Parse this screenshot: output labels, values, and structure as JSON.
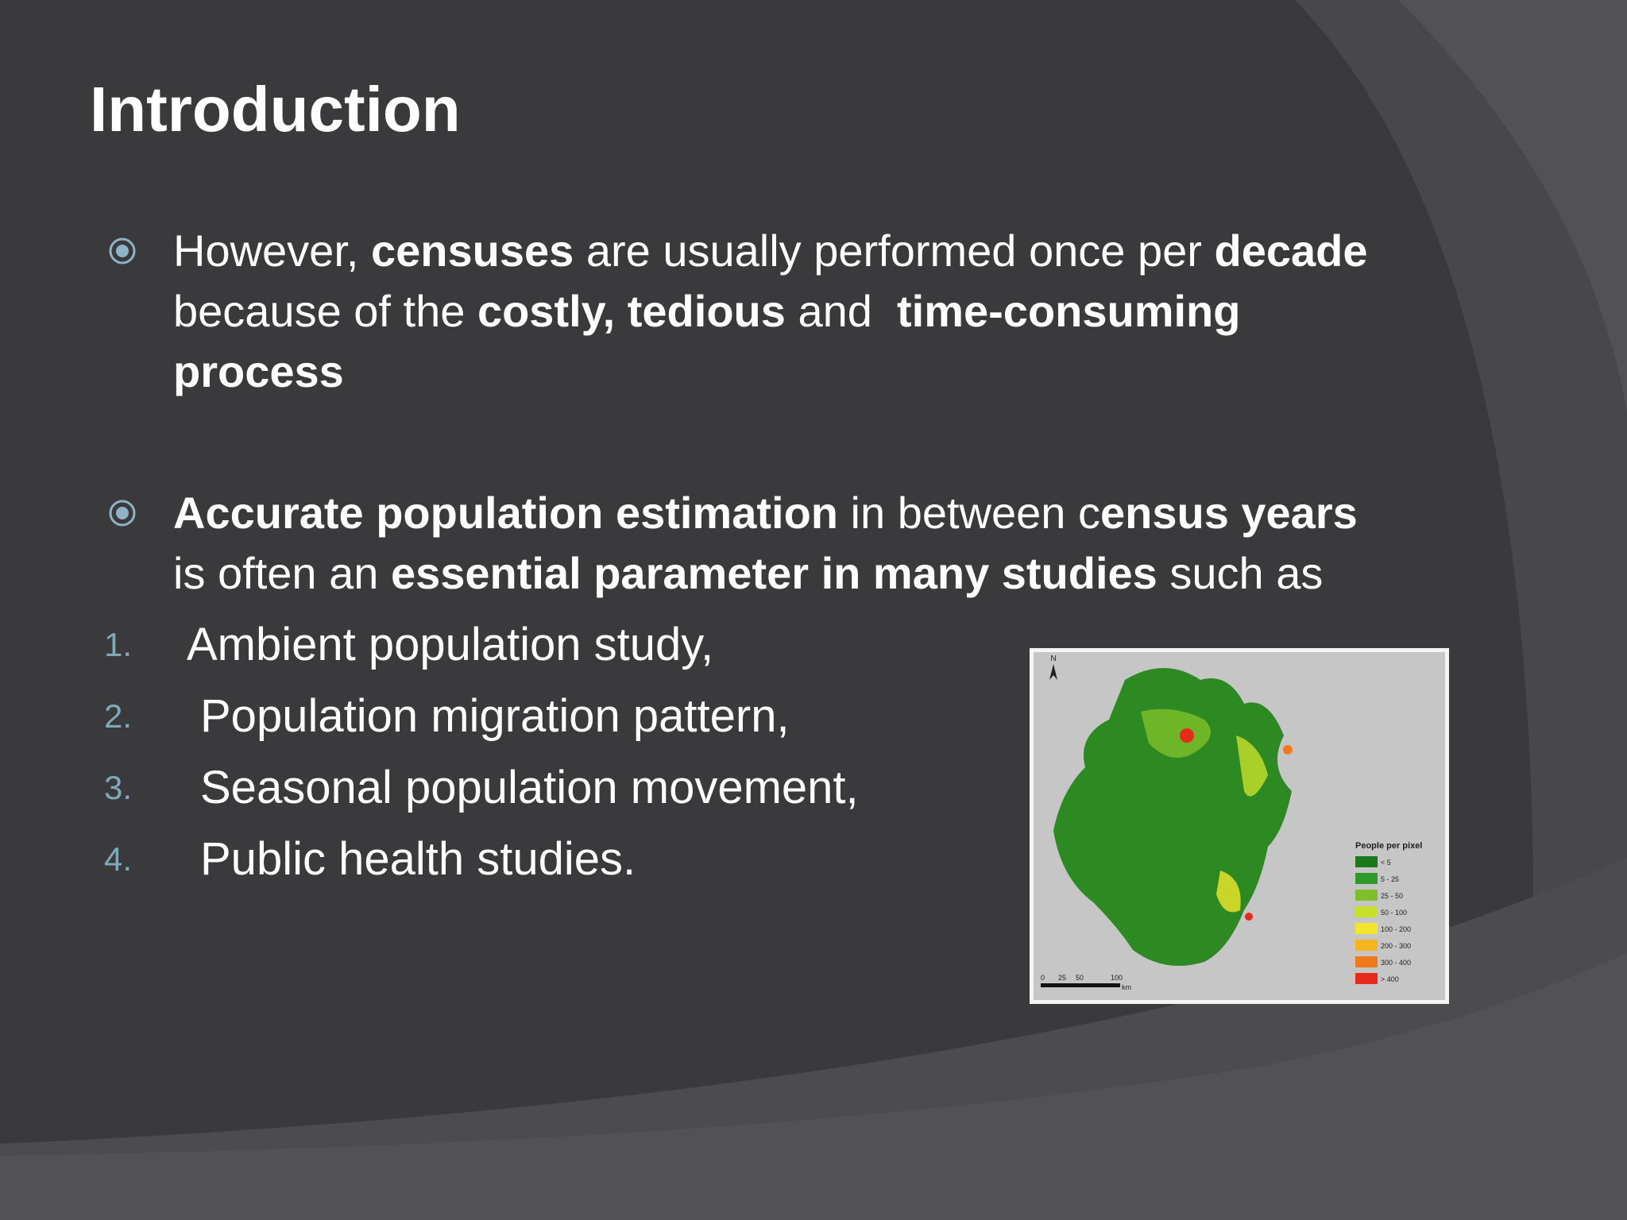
{
  "title": "Introduction",
  "bullets": [
    {
      "lines": [
        [
          {
            "text": "However, ",
            "bold": false
          },
          {
            "text": "censuses",
            "bold": true
          },
          {
            "text": " are usually performed once per ",
            "bold": false
          },
          {
            "text": "decade",
            "bold": true
          }
        ],
        [
          {
            "text": "because of the ",
            "bold": false
          },
          {
            "text": "costly, tedious",
            "bold": true
          },
          {
            "text": " and  ",
            "bold": false
          },
          {
            "text": "time-consuming",
            "bold": true
          }
        ],
        [
          {
            "text": "process",
            "bold": true
          }
        ]
      ]
    },
    {
      "lines": [
        [
          {
            "text": "Accurate population estimation",
            "bold": true
          },
          {
            "text": " in between c",
            "bold": false
          },
          {
            "text": "ensus years",
            "bold": true
          }
        ],
        [
          {
            "text": "is often an ",
            "bold": false
          },
          {
            "text": "essential parameter in many studies",
            "bold": true
          },
          {
            "text": " such as",
            "bold": false
          }
        ]
      ]
    }
  ],
  "list": [
    {
      "number": "1.",
      "text": "Ambient population study,"
    },
    {
      "number": "2.",
      "text": "Population migration pattern,"
    },
    {
      "number": "3.",
      "text": "Seasonal population movement,"
    },
    {
      "number": "4.",
      "text": "Public health studies."
    }
  ],
  "map": {
    "north": "N",
    "legend_title": "People per pixel",
    "legend": [
      {
        "label": "< 5",
        "color": "#1a7a1a"
      },
      {
        "label": "5 - 25",
        "color": "#2f9a2a"
      },
      {
        "label": "25 - 50",
        "color": "#7fbf2a"
      },
      {
        "label": "50 - 100",
        "color": "#c9e02a"
      },
      {
        "label": "100 - 200",
        "color": "#f2e62a"
      },
      {
        "label": "200 - 300",
        "color": "#f5b51e"
      },
      {
        "label": "300 - 400",
        "color": "#f07a1a"
      },
      {
        "label": "> 400",
        "color": "#e82a1a"
      }
    ],
    "scale_labels": [
      "0",
      "25",
      "50",
      "100"
    ],
    "scale_unit": "km"
  }
}
